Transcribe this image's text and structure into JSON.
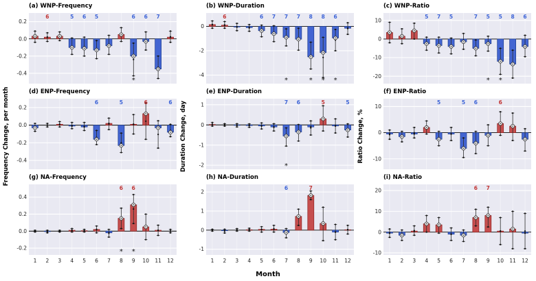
{
  "figure": {
    "xlabel": "Month",
    "col_ylabels": [
      "Frequency Change, per month",
      "Duration Change, day",
      "Ratio Change, %"
    ],
    "months": [
      1,
      2,
      3,
      4,
      5,
      6,
      7,
      8,
      9,
      10,
      11,
      12
    ],
    "colors": {
      "panel_bg": "#e9e9f2",
      "grid": "#ffffff",
      "positive_fill": "#c64e4e",
      "positive_edge": "#8c1f1f",
      "negative_fill": "#4365d2",
      "negative_edge": "#1a3a8f",
      "count_red": "#c03434",
      "count_blue": "#3b62d6"
    }
  },
  "chart_data": [
    {
      "id": "a",
      "title": "(a) WNP-Frequency",
      "row": 0,
      "col": 0,
      "type": "bar",
      "ylim": [
        -0.52,
        0.3
      ],
      "ytick_vals": [
        0.2,
        0.0,
        -0.2,
        -0.4
      ],
      "ytick_labels": [
        "0.2",
        "0.0",
        "-0.2",
        "-0.4"
      ],
      "values": [
        0.03,
        0.02,
        0.03,
        -0.1,
        -0.11,
        -0.13,
        -0.08,
        0.05,
        -0.2,
        -0.03,
        -0.35,
        0.02
      ],
      "errors": [
        [
          -0.04,
          0.09
        ],
        [
          -0.03,
          0.07
        ],
        [
          -0.02,
          0.08
        ],
        [
          -0.18,
          0.01
        ],
        [
          -0.2,
          0.02
        ],
        [
          -0.23,
          -0.02
        ],
        [
          -0.18,
          0.04
        ],
        [
          -0.03,
          0.13
        ],
        [
          -0.43,
          -0.05
        ],
        [
          -0.13,
          0.08
        ],
        [
          -0.46,
          -0.2
        ],
        [
          -0.04,
          0.09
        ]
      ],
      "counts": [
        {
          "month": 2,
          "n": 6,
          "color": "red"
        },
        {
          "month": 4,
          "n": 5,
          "color": "blue"
        },
        {
          "month": 5,
          "n": 6,
          "color": "blue"
        },
        {
          "month": 6,
          "n": 5,
          "color": "blue"
        },
        {
          "month": 9,
          "n": 6,
          "color": "blue"
        },
        {
          "month": 10,
          "n": 6,
          "color": "blue"
        },
        {
          "month": 11,
          "n": 7,
          "color": "blue"
        }
      ],
      "asterisks": [
        9
      ]
    },
    {
      "id": "b",
      "title": "(b) WNP-Duration",
      "row": 0,
      "col": 1,
      "type": "bar",
      "ylim": [
        -4.7,
        1.1
      ],
      "ytick_vals": [
        0,
        -2,
        -4
      ],
      "ytick_labels": [
        "0",
        "-2",
        "-4"
      ],
      "values": [
        0.15,
        0.1,
        -0.05,
        -0.1,
        -0.35,
        -0.6,
        -0.9,
        -1.05,
        -2.5,
        -2.15,
        -0.95,
        -0.15
      ],
      "errors": [
        [
          -0.15,
          0.45
        ],
        [
          -0.15,
          0.4
        ],
        [
          -0.35,
          0.25
        ],
        [
          -0.4,
          0.15
        ],
        [
          -0.85,
          0.1
        ],
        [
          -1.25,
          0.05
        ],
        [
          -1.6,
          -0.2
        ],
        [
          -1.95,
          -0.15
        ],
        [
          -3.5,
          -1.3
        ],
        [
          -4.2,
          -0.9
        ],
        [
          -2.0,
          -0.25
        ],
        [
          -0.65,
          0.3
        ]
      ],
      "counts": [
        {
          "month": 2,
          "n": 6,
          "color": "red"
        },
        {
          "month": 5,
          "n": 6,
          "color": "blue"
        },
        {
          "month": 6,
          "n": 7,
          "color": "blue"
        },
        {
          "month": 7,
          "n": 7,
          "color": "blue"
        },
        {
          "month": 8,
          "n": 7,
          "color": "blue"
        },
        {
          "month": 9,
          "n": 8,
          "color": "blue"
        },
        {
          "month": 10,
          "n": 8,
          "color": "blue"
        },
        {
          "month": 11,
          "n": 6,
          "color": "blue"
        }
      ],
      "asterisks": [
        7,
        9,
        10,
        11
      ]
    },
    {
      "id": "c",
      "title": "(c) WNP-Ratio",
      "row": 0,
      "col": 2,
      "type": "bar",
      "ylim": [
        -24,
        14
      ],
      "ytick_vals": [
        10,
        0,
        -10,
        -20
      ],
      "ytick_labels": [
        "10",
        "0",
        "-10",
        "-20"
      ],
      "values": [
        3.5,
        1.5,
        4.5,
        -2.5,
        -3.5,
        -4.0,
        -1.5,
        -5.0,
        -2.5,
        -12.0,
        -13.5,
        -4.0
      ],
      "errors": [
        [
          -2.0,
          9.0
        ],
        [
          -2.5,
          5.5
        ],
        [
          0.0,
          8.5
        ],
        [
          -6.0,
          1.0
        ],
        [
          -7.5,
          1.0
        ],
        [
          -8.0,
          0.5
        ],
        [
          -5.5,
          3.0
        ],
        [
          -9.0,
          -0.5
        ],
        [
          -6.5,
          1.5
        ],
        [
          -19.0,
          -5.0
        ],
        [
          -21.0,
          -6.0
        ],
        [
          -9.5,
          2.0
        ]
      ],
      "counts": [
        {
          "month": 4,
          "n": 5,
          "color": "blue"
        },
        {
          "month": 5,
          "n": 7,
          "color": "blue"
        },
        {
          "month": 6,
          "n": 5,
          "color": "blue"
        },
        {
          "month": 8,
          "n": 7,
          "color": "blue"
        },
        {
          "month": 9,
          "n": 5,
          "color": "blue"
        },
        {
          "month": 10,
          "n": 5,
          "color": "blue"
        },
        {
          "month": 11,
          "n": 8,
          "color": "blue"
        },
        {
          "month": 12,
          "n": 6,
          "color": "blue"
        }
      ],
      "asterisks": [
        9,
        10
      ]
    },
    {
      "id": "d",
      "title": "(d) ENP-Frequency",
      "row": 1,
      "col": 0,
      "type": "bar",
      "ylim": [
        -0.5,
        0.3
      ],
      "ytick_vals": [
        0.2,
        0.0,
        -0.2,
        -0.4
      ],
      "ytick_labels": [
        "0.2",
        "0.0",
        "-0.2",
        "-0.4"
      ],
      "values": [
        -0.03,
        0.0,
        0.01,
        -0.01,
        -0.02,
        -0.16,
        0.02,
        -0.23,
        0.01,
        0.13,
        -0.03,
        -0.08
      ],
      "errors": [
        [
          -0.07,
          0.02
        ],
        [
          -0.02,
          0.02
        ],
        [
          -0.02,
          0.04
        ],
        [
          -0.04,
          0.03
        ],
        [
          -0.06,
          0.03
        ],
        [
          -0.22,
          -0.06
        ],
        [
          -0.05,
          0.08
        ],
        [
          -0.31,
          -0.09
        ],
        [
          -0.1,
          0.12
        ],
        [
          -0.16,
          0.25
        ],
        [
          -0.26,
          0.05
        ],
        [
          -0.13,
          0.01
        ]
      ],
      "counts": [
        {
          "month": 6,
          "n": 6,
          "color": "blue"
        },
        {
          "month": 8,
          "n": 5,
          "color": "blue"
        },
        {
          "month": 10,
          "n": 6,
          "color": "red"
        },
        {
          "month": 12,
          "n": 6,
          "color": "blue"
        }
      ],
      "asterisks": []
    },
    {
      "id": "e",
      "title": "(e) ENP-Duration",
      "row": 1,
      "col": 1,
      "type": "bar",
      "ylim": [
        -2.2,
        1.3
      ],
      "ytick_vals": [
        1,
        0,
        -1,
        -2
      ],
      "ytick_labels": [
        "1",
        "0",
        "-1",
        "-2"
      ],
      "values": [
        0.02,
        0.0,
        -0.02,
        -0.03,
        -0.05,
        -0.1,
        -0.55,
        -0.35,
        -0.1,
        0.3,
        -0.05,
        -0.25
      ],
      "errors": [
        [
          -0.06,
          0.12
        ],
        [
          -0.06,
          0.06
        ],
        [
          -0.1,
          0.06
        ],
        [
          -0.12,
          0.05
        ],
        [
          -0.2,
          0.1
        ],
        [
          -0.3,
          0.06
        ],
        [
          -1.05,
          -0.15
        ],
        [
          -0.8,
          0.02
        ],
        [
          -0.5,
          0.2
        ],
        [
          -0.3,
          0.95
        ],
        [
          -0.4,
          0.3
        ],
        [
          -0.6,
          0.05
        ]
      ],
      "counts": [
        {
          "month": 7,
          "n": 7,
          "color": "blue"
        },
        {
          "month": 8,
          "n": 6,
          "color": "blue"
        },
        {
          "month": 10,
          "n": 5,
          "color": "red"
        },
        {
          "month": 12,
          "n": 5,
          "color": "blue"
        }
      ],
      "asterisks": [
        7
      ]
    },
    {
      "id": "f",
      "title": "(f) ENP-Ratio",
      "row": 1,
      "col": 2,
      "type": "bar",
      "ylim": [
        -14,
        13
      ],
      "ytick_vals": [
        10,
        0,
        -10
      ],
      "ytick_labels": [
        "10",
        "0",
        "-10"
      ],
      "values": [
        -0.5,
        -1.5,
        -0.5,
        2.0,
        -2.5,
        -0.5,
        -6.0,
        -4.0,
        -1.0,
        3.5,
        2.5,
        -2.5
      ],
      "errors": [
        [
          -2.5,
          1.0
        ],
        [
          -3.5,
          0.5
        ],
        [
          -2.0,
          2.0
        ],
        [
          -0.5,
          4.5
        ],
        [
          -5.0,
          0.5
        ],
        [
          -3.0,
          2.0
        ],
        [
          -9.5,
          -2.0
        ],
        [
          -8.0,
          0.5
        ],
        [
          -5.0,
          3.0
        ],
        [
          -1.0,
          8.0
        ],
        [
          -3.0,
          7.5
        ],
        [
          -7.0,
          1.5
        ]
      ],
      "counts": [
        {
          "month": 5,
          "n": 5,
          "color": "blue"
        },
        {
          "month": 7,
          "n": 5,
          "color": "blue"
        },
        {
          "month": 8,
          "n": 6,
          "color": "blue"
        },
        {
          "month": 10,
          "n": 6,
          "color": "red"
        }
      ],
      "asterisks": []
    },
    {
      "id": "g",
      "title": "(g) NA-Frequency",
      "row": 2,
      "col": 0,
      "type": "bar",
      "ylim": [
        -0.28,
        0.55
      ],
      "ytick_vals": [
        0.4,
        0.2,
        0.0,
        -0.2
      ],
      "ytick_labels": [
        "0.4",
        "0.2",
        "0.0",
        "-0.2"
      ],
      "values": [
        0.0,
        -0.005,
        0.0,
        0.01,
        0.005,
        0.02,
        -0.02,
        0.15,
        0.31,
        0.05,
        0.01,
        0.0
      ],
      "errors": [
        [
          -0.01,
          0.01
        ],
        [
          -0.02,
          0.01
        ],
        [
          -0.01,
          0.01
        ],
        [
          -0.01,
          0.03
        ],
        [
          -0.01,
          0.02
        ],
        [
          -0.02,
          0.06
        ],
        [
          -0.07,
          0.02
        ],
        [
          0.03,
          0.27
        ],
        [
          0.09,
          0.43
        ],
        [
          -0.1,
          0.2
        ],
        [
          -0.05,
          0.07
        ],
        [
          -0.02,
          0.02
        ]
      ],
      "counts": [
        {
          "month": 8,
          "n": 6,
          "color": "red"
        },
        {
          "month": 9,
          "n": 6,
          "color": "red"
        }
      ],
      "asterisks": [
        8,
        9
      ]
    },
    {
      "id": "h",
      "title": "(h) NA-Duration",
      "row": 2,
      "col": 1,
      "type": "bar",
      "ylim": [
        -1.3,
        2.4
      ],
      "ytick_vals": [
        2,
        1,
        0,
        -1
      ],
      "ytick_labels": [
        "2",
        "1",
        "0",
        "-1"
      ],
      "values": [
        0.0,
        -0.03,
        0.0,
        0.02,
        0.04,
        0.05,
        -0.12,
        0.72,
        1.82,
        0.35,
        -0.1,
        0.02
      ],
      "errors": [
        [
          -0.05,
          0.05
        ],
        [
          -0.15,
          0.05
        ],
        [
          -0.05,
          0.08
        ],
        [
          -0.05,
          0.1
        ],
        [
          -0.1,
          0.18
        ],
        [
          -0.1,
          0.25
        ],
        [
          -0.4,
          0.08
        ],
        [
          0.25,
          1.1
        ],
        [
          1.6,
          2.05
        ],
        [
          -0.55,
          1.2
        ],
        [
          -0.5,
          0.3
        ],
        [
          -0.2,
          0.25
        ]
      ],
      "counts": [
        {
          "month": 7,
          "n": 6,
          "color": "blue"
        },
        {
          "month": 9,
          "n": 7,
          "color": "red"
        }
      ],
      "asterisks": []
    },
    {
      "id": "i",
      "title": "(i) NA-Ratio",
      "row": 2,
      "col": 2,
      "type": "bar",
      "ylim": [
        -11,
        23
      ],
      "ytick_vals": [
        20,
        10,
        0,
        -10
      ],
      "ytick_labels": [
        "20",
        "10",
        "0",
        "-10"
      ],
      "values": [
        -0.5,
        -1.5,
        0.5,
        4.0,
        3.5,
        -1.0,
        -1.5,
        7.0,
        8.0,
        0.5,
        1.5,
        -0.5
      ],
      "errors": [
        [
          -2.5,
          1.5
        ],
        [
          -4.0,
          1.0
        ],
        [
          -1.5,
          3.0
        ],
        [
          0.0,
          8.0
        ],
        [
          -0.5,
          7.0
        ],
        [
          -4.0,
          2.0
        ],
        [
          -4.5,
          1.0
        ],
        [
          3.0,
          11.0
        ],
        [
          2.5,
          12.0
        ],
        [
          -6.0,
          7.0
        ],
        [
          -8.0,
          10.0
        ],
        [
          -8.0,
          9.0
        ]
      ],
      "counts": [
        {
          "month": 8,
          "n": 6,
          "color": "red"
        },
        {
          "month": 9,
          "n": 7,
          "color": "red"
        }
      ],
      "asterisks": []
    }
  ]
}
